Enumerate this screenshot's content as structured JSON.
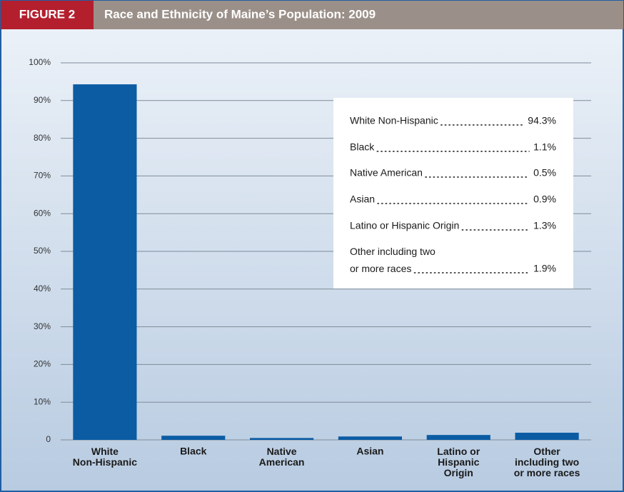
{
  "chart_data": {
    "type": "bar",
    "figure_label": "FIGURE 2",
    "title": "Race and Ethnicity of Maine’s Population: 2009",
    "categories": [
      "White\nNon-Hispanic",
      "Black",
      "Native\nAmerican",
      "Asian",
      "Latino or\nHispanic\nOrigin",
      "Other\nincluding two\nor more races"
    ],
    "values": [
      94.3,
      1.1,
      0.5,
      0.9,
      1.3,
      1.9
    ],
    "value_labels": [
      "94.3%",
      "1.1%",
      "0.5%",
      "0.9%",
      "1.3%",
      "1.9%"
    ],
    "legend_labels": [
      "White Non-Hispanic",
      "Black",
      "Native American",
      "Asian",
      "Latino or Hispanic Origin",
      "Other including two\nor more races"
    ],
    "color": "#0b5ca3",
    "ylim": [
      0,
      100
    ],
    "yticks": [
      0,
      {
        "value": 10,
        "label": "10%"
      },
      {
        "value": 20,
        "label": "20%"
      },
      {
        "value": 30,
        "label": "30%"
      },
      {
        "value": 40,
        "label": "40%"
      },
      {
        "value": 50,
        "label": "50%"
      },
      {
        "value": 60,
        "label": "60%"
      },
      {
        "value": 70,
        "label": "70%"
      },
      {
        "value": 80,
        "label": "80%"
      },
      {
        "value": 90,
        "label": "90%"
      },
      {
        "value": 100,
        "label": "100%"
      }
    ],
    "grid": true
  }
}
